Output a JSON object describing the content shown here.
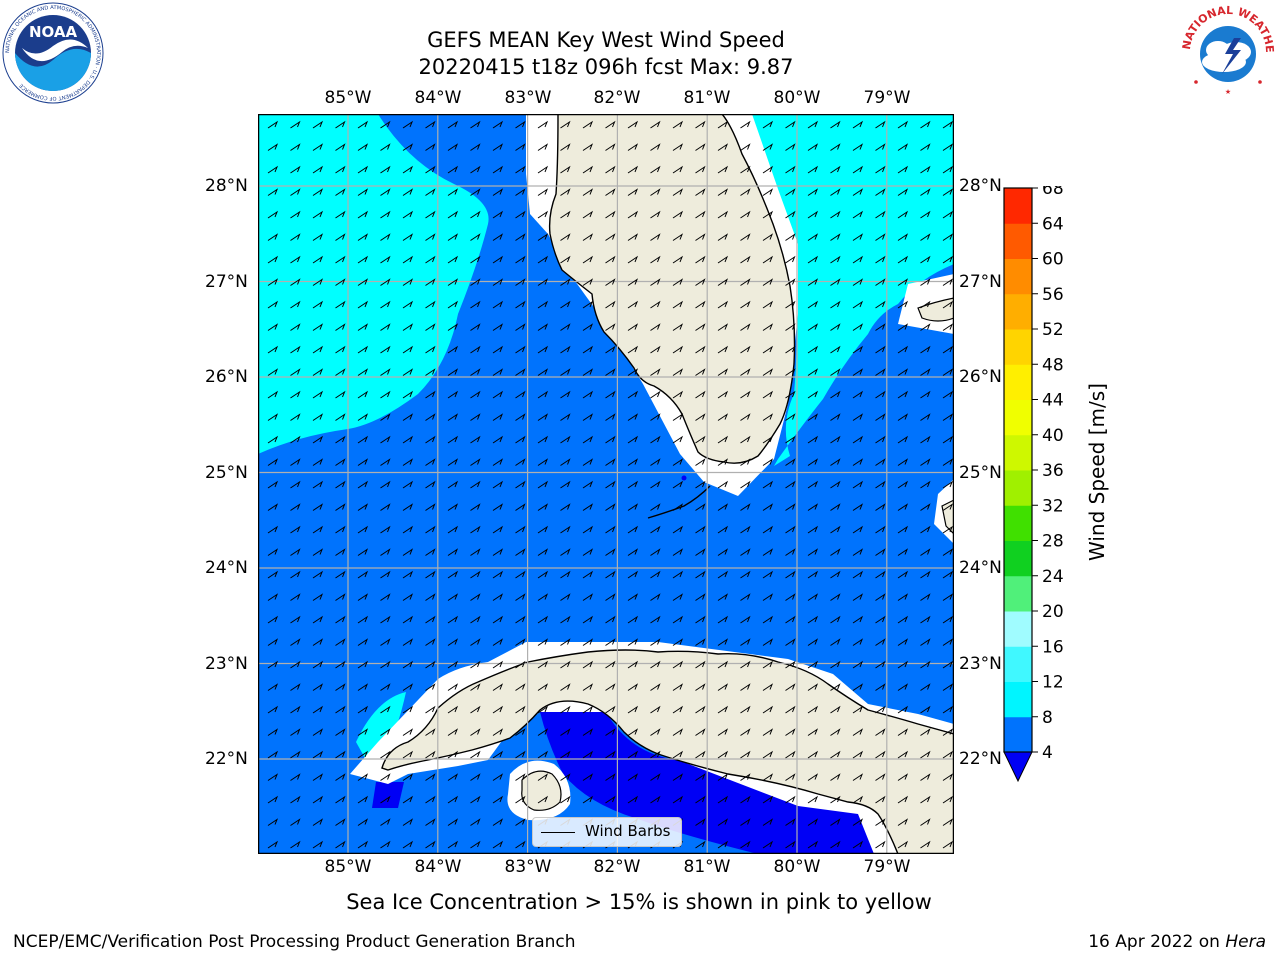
{
  "title": {
    "line1": "GEFS MEAN Key West Wind Speed",
    "line2": "20220415 t18z 096h fcst   Max: 9.87"
  },
  "logos": {
    "noaa": {
      "name": "noaa-logo",
      "text": "NOAA",
      "ring_text": "NATIONAL OCEANIC AND ATMOSPHERIC ADMINISTRATION · U.S. DEPARTMENT OF COMMERCE"
    },
    "nws": {
      "name": "nws-logo",
      "ring_text": "NATIONAL WEATHER SERVICE"
    }
  },
  "map": {
    "lon_labels": [
      "85°W",
      "84°W",
      "83°W",
      "82°W",
      "81°W",
      "80°W",
      "79°W"
    ],
    "lat_labels": [
      "28°N",
      "27°N",
      "26°N",
      "25°N",
      "24°N",
      "23°N",
      "22°N"
    ],
    "extent": {
      "lon_min": -86.0,
      "lon_max": -78.25,
      "lat_min": 21.0,
      "lat_max": 28.75
    },
    "grid": true,
    "colors": {
      "land": "#eeecdc",
      "wind_4_8": "#0073fd",
      "wind_8_12": "#00ffff",
      "wind_below_4": "#0000f5",
      "coast": "#000000",
      "grid": "#b0b0b0"
    }
  },
  "legend": {
    "label": "Wind Barbs"
  },
  "colorbar": {
    "title": "Wind Speed [m/s]",
    "ticks": [
      "4",
      "8",
      "12",
      "16",
      "20",
      "24",
      "28",
      "32",
      "36",
      "40",
      "44",
      "48",
      "52",
      "56",
      "60",
      "64",
      "68"
    ],
    "colors": [
      "#0073fd",
      "#00f5ff",
      "#40f8ff",
      "#a0fcff",
      "#50f07a",
      "#10d020",
      "#40e000",
      "#a0f000",
      "#cef800",
      "#f0ff00",
      "#ffef00",
      "#ffd400",
      "#ffae00",
      "#ff8c00",
      "#ff5a00",
      "#ff2800"
    ],
    "extend_color": "#0000f5"
  },
  "note": "Sea Ice Concentration > 15% is shown in pink to yellow",
  "footer": {
    "left": "NCEP/EMC/Verification Post Processing Product Generation Branch",
    "date": "16 Apr 2022 on ",
    "host": "Hera"
  }
}
